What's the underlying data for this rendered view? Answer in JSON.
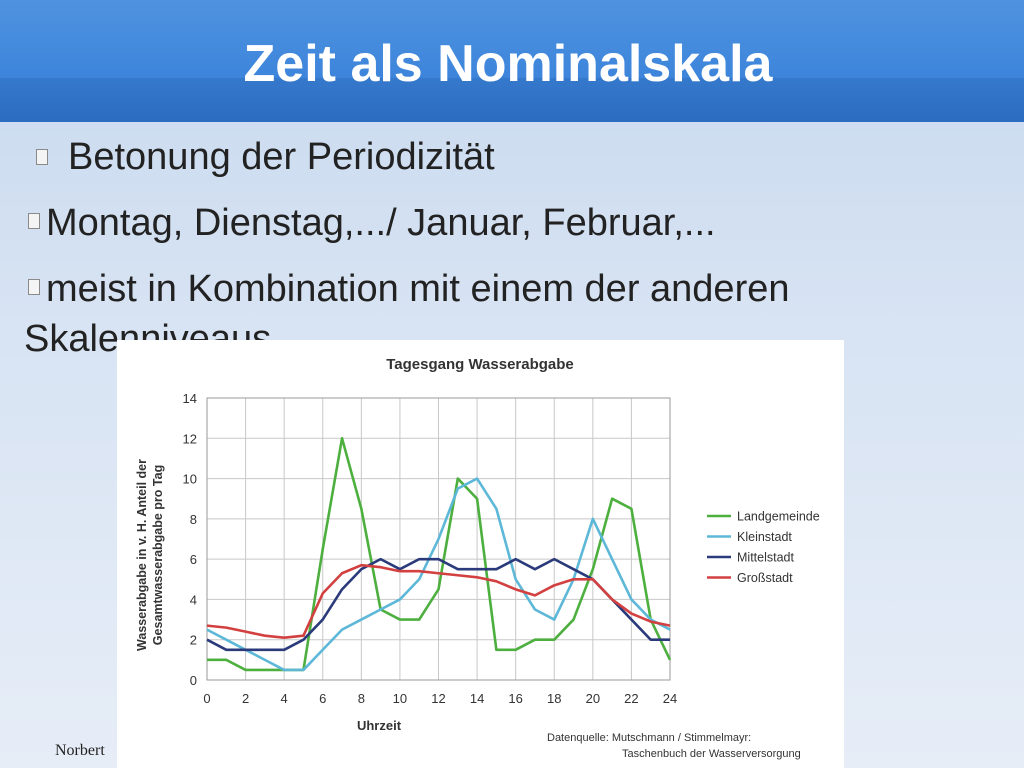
{
  "slide": {
    "title": "Zeit als Nominalskala",
    "bullets": [
      "Betonung der Periodizität",
      "Montag, Dienstag,.../ Januar, Februar,...",
      "meist in Kombination mit einem der anderen",
      "Skalenniveaus"
    ],
    "footer": "Norbert"
  },
  "chart_data": {
    "type": "line",
    "title": "Tagesgang Wasserabgabe",
    "xlabel": "Uhrzeit",
    "ylabel_line1": "Wasserabgabe in v. H. Anteil der",
    "ylabel_line2": "Gesamtwasserabgabe pro Tag",
    "xlim": [
      0,
      24
    ],
    "ylim": [
      0,
      14
    ],
    "xticks": [
      0,
      2,
      4,
      6,
      8,
      10,
      12,
      14,
      16,
      18,
      20,
      22,
      24
    ],
    "yticks": [
      0,
      2,
      4,
      6,
      8,
      10,
      12,
      14
    ],
    "grid": true,
    "legend_position": "right",
    "source_line1": "Datenquelle: Mutschmann / Stimmelmayr:",
    "source_line2": "Taschenbuch der Wasserversorgung",
    "x": [
      0,
      1,
      2,
      3,
      4,
      5,
      6,
      7,
      8,
      9,
      10,
      11,
      12,
      13,
      14,
      15,
      16,
      17,
      18,
      19,
      20,
      21,
      22,
      23,
      24
    ],
    "series": [
      {
        "name": "Landgemeinde",
        "color": "#4caf3e",
        "values": [
          1.0,
          1.0,
          0.5,
          0.5,
          0.5,
          0.5,
          6.5,
          12.0,
          8.5,
          3.5,
          3.0,
          3.0,
          4.5,
          10.0,
          9.0,
          1.5,
          1.5,
          2.0,
          2.0,
          3.0,
          5.5,
          9.0,
          8.5,
          3.0,
          1.0
        ]
      },
      {
        "name": "Kleinstadt",
        "color": "#5db8d8",
        "values": [
          2.5,
          2.0,
          1.5,
          1.0,
          0.5,
          0.5,
          1.5,
          2.5,
          3.0,
          3.5,
          4.0,
          5.0,
          7.0,
          9.5,
          10.0,
          8.5,
          5.0,
          3.5,
          3.0,
          5.0,
          8.0,
          6.0,
          4.0,
          3.0,
          2.5
        ]
      },
      {
        "name": "Mittelstadt",
        "color": "#2b3a7a",
        "values": [
          2.0,
          1.5,
          1.5,
          1.5,
          1.5,
          2.0,
          3.0,
          4.5,
          5.5,
          6.0,
          5.5,
          6.0,
          6.0,
          5.5,
          5.5,
          5.5,
          6.0,
          5.5,
          6.0,
          5.5,
          5.0,
          4.0,
          3.0,
          2.0,
          2.0
        ]
      },
      {
        "name": "Großstadt",
        "color": "#d24040",
        "values": [
          2.7,
          2.6,
          2.4,
          2.2,
          2.1,
          2.2,
          4.3,
          5.3,
          5.7,
          5.6,
          5.4,
          5.4,
          5.3,
          5.2,
          5.1,
          4.9,
          4.5,
          4.2,
          4.7,
          5.0,
          5.0,
          4.0,
          3.3,
          2.9,
          2.7
        ]
      }
    ]
  }
}
